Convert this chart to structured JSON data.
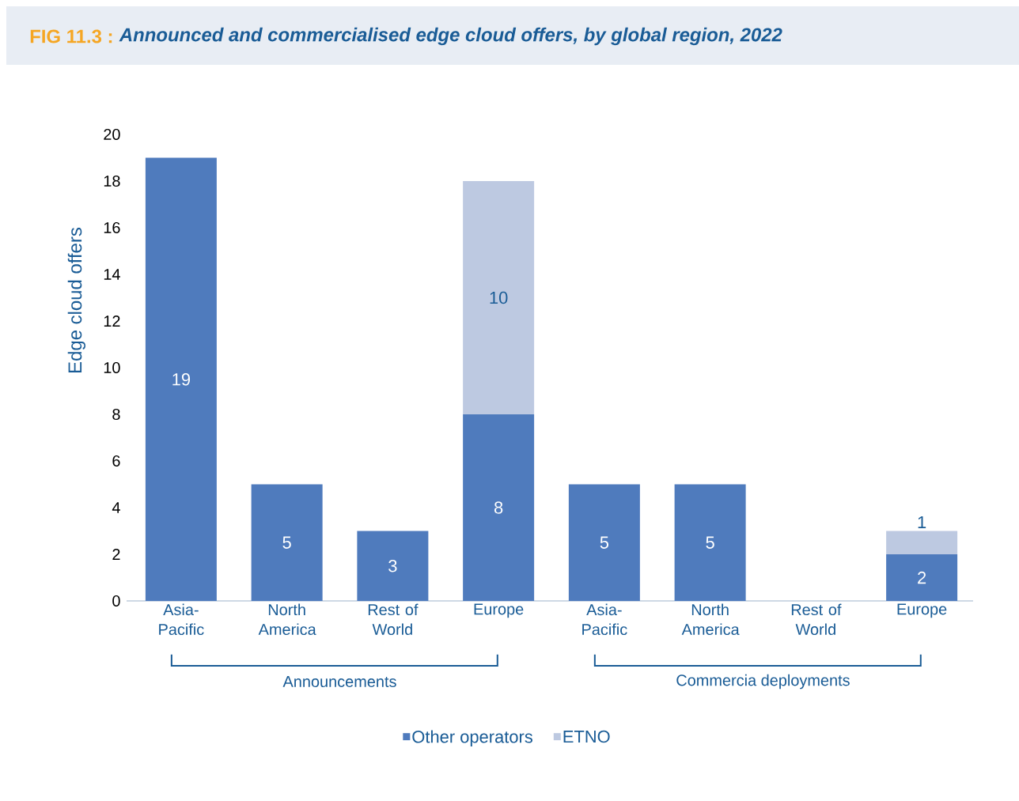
{
  "chart_data": {
    "type": "bar",
    "title": "Announced and commercialised edge cloud offers, by global region, 2022",
    "annotations": [
      "Announcements",
      "Commercia deployments",
      "FIG 11.3 :"
    ],
    "ylabel": "Edge cloud offers",
    "categories": [
      "Asia-Pacific",
      "North America",
      "Rest of World",
      "Europe",
      "Asia-Pacific",
      "North America",
      "Rest of World",
      "Europe"
    ],
    "series": [
      {
        "name": "Other operators",
        "color": "#4f7bbd",
        "values": [
          19,
          5,
          3,
          8,
          5,
          5,
          0,
          2
        ],
        "value_labels": [
          "19",
          "5",
          "3",
          "8",
          "5",
          "5",
          null,
          "2"
        ]
      },
      {
        "name": "ETNO",
        "color": "#bdc9e1",
        "values": [
          0,
          0,
          0,
          10,
          0,
          0,
          0,
          1
        ],
        "value_labels": [
          null,
          null,
          null,
          "10",
          null,
          null,
          null,
          "1"
        ]
      }
    ],
    "stacked": true,
    "ylim": [
      0,
      20
    ],
    "yticks": [
      0,
      2,
      4,
      6,
      8,
      10,
      12,
      14,
      16,
      18,
      20
    ],
    "legend": "bottom",
    "grid": false
  }
}
